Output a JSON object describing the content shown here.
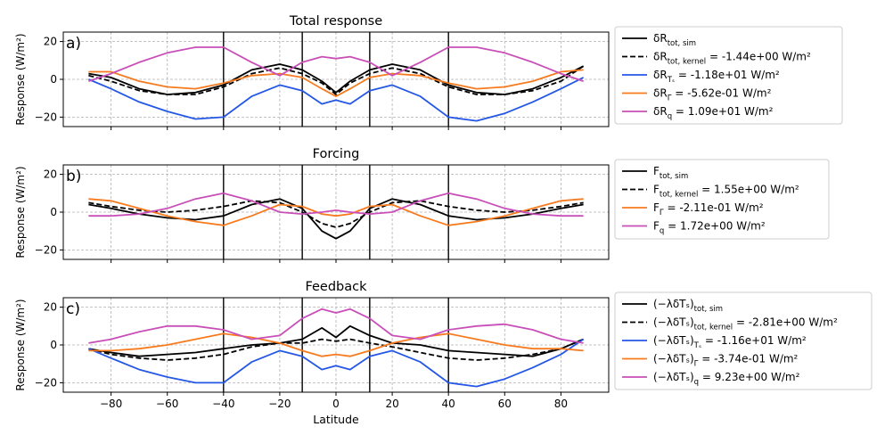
{
  "figure": {
    "ylabel": "Response (W/m²)",
    "xlabel": "Latitude",
    "x_ticks": [
      "−80",
      "−60",
      "−40",
      "−20",
      "0",
      "20",
      "40",
      "60",
      "80"
    ],
    "y_ticks": [
      "−20",
      "0",
      "20"
    ]
  },
  "chart_data": [
    {
      "type": "line",
      "panel_label": "a)",
      "title": "Total response",
      "xlabel": "",
      "ylabel": "Response (W/m²)",
      "xlim": [
        -97,
        97
      ],
      "ylim": [
        -25,
        25
      ],
      "vlines": [
        -40,
        -12,
        12,
        40
      ],
      "x": [
        -88,
        -80,
        -70,
        -60,
        -50,
        -40,
        -30,
        -20,
        -12,
        -5,
        0,
        5,
        12,
        20,
        30,
        40,
        50,
        60,
        70,
        80,
        88
      ],
      "series": [
        {
          "name": "δR_tot,sim",
          "legend_main": "δR",
          "legend_sub": "tot, sim",
          "legend_value": "",
          "color": "#000000",
          "dash": "solid",
          "values": [
            3,
            1,
            -5,
            -8,
            -7,
            -3,
            5,
            8,
            5,
            -1,
            -7,
            -1,
            5,
            8,
            5,
            -3,
            -7,
            -8,
            -5,
            1,
            7
          ]
        },
        {
          "name": "δR_tot,kernel",
          "legend_main": "δR",
          "legend_sub": "tot, kernel",
          "legend_value": " = -1.44e+00 W/m²",
          "color": "#000000",
          "dash": "dashed",
          "values": [
            2,
            -1,
            -6,
            -8,
            -8,
            -4,
            3,
            6,
            3,
            -2,
            -8,
            -2,
            3,
            6,
            3,
            -4,
            -8,
            -8,
            -6,
            -1,
            7
          ]
        },
        {
          "name": "δR_Ts",
          "legend_main": "δR",
          "legend_sub": "Tₛ",
          "legend_value": " = -1.18e+01 W/m²",
          "color": "#2457e6",
          "dash": "solid",
          "values": [
            0,
            -5,
            -12,
            -17,
            -21,
            -20,
            -9,
            -3,
            -6,
            -13,
            -11,
            -13,
            -6,
            -3,
            -9,
            -20,
            -22,
            -18,
            -12,
            -5,
            1
          ]
        },
        {
          "name": "δR_Γ",
          "legend_main": "δR",
          "legend_sub": "Γ",
          "legend_value": " = -5.62e-01 W/m²",
          "color": "#f77b1e",
          "dash": "solid",
          "values": [
            4,
            4,
            -1,
            -4,
            -5,
            -2,
            2,
            3,
            1,
            -5,
            -9,
            -5,
            1,
            3,
            2,
            -2,
            -5,
            -4,
            -1,
            4,
            5
          ]
        },
        {
          "name": "δR_q",
          "legend_main": "δR",
          "legend_sub": "q",
          "legend_value": " = 1.09e+01 W/m²",
          "color": "#c94fb8",
          "dash": "solid",
          "values": [
            -1,
            3,
            9,
            14,
            17,
            17,
            9,
            2,
            9,
            12,
            11,
            12,
            9,
            2,
            9,
            17,
            17,
            14,
            9,
            3,
            -1
          ]
        }
      ]
    },
    {
      "type": "line",
      "panel_label": "b)",
      "title": "Forcing",
      "xlabel": "",
      "ylabel": "Response (W/m²)",
      "xlim": [
        -97,
        97
      ],
      "ylim": [
        -25,
        25
      ],
      "vlines": [
        -40,
        -12,
        12,
        40
      ],
      "x": [
        -88,
        -80,
        -70,
        -60,
        -50,
        -40,
        -30,
        -20,
        -12,
        -5,
        0,
        5,
        12,
        20,
        30,
        40,
        50,
        60,
        70,
        80,
        88
      ],
      "series": [
        {
          "name": "F_tot,sim",
          "legend_main": "F",
          "legend_sub": "tot, sim",
          "legend_value": "",
          "color": "#000000",
          "dash": "solid",
          "values": [
            4,
            2,
            -1,
            -3,
            -4,
            -2,
            4,
            7,
            2,
            -10,
            -14,
            -10,
            2,
            7,
            4,
            -2,
            -4,
            -3,
            -1,
            2,
            4
          ]
        },
        {
          "name": "F_tot,kernel",
          "legend_main": "F",
          "legend_sub": "tot, kernel",
          "legend_value": " = 1.55e+00 W/m²",
          "color": "#000000",
          "dash": "dashed",
          "values": [
            5,
            3,
            1,
            0,
            1,
            3,
            6,
            5,
            0,
            -6,
            -8,
            -6,
            0,
            5,
            6,
            3,
            1,
            0,
            1,
            3,
            5
          ]
        },
        {
          "name": "F_Γ",
          "legend_main": "F",
          "legend_sub": "Γ",
          "legend_value": " = -2.11e-01 W/m²",
          "color": "#f77b1e",
          "dash": "solid",
          "values": [
            7,
            6,
            2,
            -2,
            -5,
            -7,
            -2,
            4,
            3,
            -1,
            -2,
            -1,
            3,
            4,
            -2,
            -7,
            -5,
            -2,
            2,
            6,
            7
          ]
        },
        {
          "name": "F_q",
          "legend_main": "F",
          "legend_sub": "q",
          "legend_value": " = 1.72e+00 W/m²",
          "color": "#c94fb8",
          "dash": "solid",
          "values": [
            -2,
            -2,
            -1,
            2,
            7,
            10,
            6,
            0,
            -1,
            0,
            1,
            0,
            -1,
            0,
            6,
            10,
            7,
            2,
            -1,
            -2,
            -2
          ]
        }
      ]
    },
    {
      "type": "line",
      "panel_label": "c)",
      "title": "Feedback",
      "xlabel": "Latitude",
      "ylabel": "Response (W/m²)",
      "xlim": [
        -97,
        97
      ],
      "ylim": [
        -25,
        25
      ],
      "vlines": [
        -40,
        -12,
        12,
        40
      ],
      "x": [
        -88,
        -80,
        -70,
        -60,
        -50,
        -40,
        -30,
        -20,
        -12,
        -5,
        0,
        5,
        12,
        20,
        30,
        40,
        50,
        60,
        70,
        80,
        88
      ],
      "series": [
        {
          "name": "(−λδTs)_tot,sim",
          "legend_main": "(−λδTₛ)",
          "legend_sub": "tot, sim",
          "legend_value": "",
          "color": "#000000",
          "dash": "solid",
          "values": [
            -2,
            -4,
            -6,
            -5,
            -4,
            -2,
            0,
            1,
            3,
            9,
            4,
            10,
            5,
            1,
            0,
            -3,
            -4,
            -5,
            -6,
            -2,
            3
          ]
        },
        {
          "name": "(−λδTs)_tot,kernel",
          "legend_main": "(−λδTₛ)",
          "legend_sub": "tot, kernel",
          "legend_value": " = -2.81e+00 W/m²",
          "color": "#000000",
          "dash": "dashed",
          "values": [
            -2,
            -5,
            -7,
            -8,
            -7,
            -5,
            -1,
            1,
            1,
            3,
            2,
            3,
            1,
            -1,
            -4,
            -7,
            -8,
            -7,
            -5,
            -2,
            3
          ]
        },
        {
          "name": "(−λδTs)_Ts",
          "legend_main": "(−λδTₛ)",
          "legend_sub": "Tₛ",
          "legend_value": " = -1.16e+01 W/m²",
          "color": "#2457e6",
          "dash": "solid",
          "values": [
            -2,
            -7,
            -13,
            -17,
            -20,
            -20,
            -9,
            -3,
            -6,
            -13,
            -11,
            -13,
            -6,
            -3,
            -9,
            -20,
            -22,
            -18,
            -12,
            -5,
            3
          ]
        },
        {
          "name": "(−λδTs)_Γ",
          "legend_main": "(−λδTₛ)",
          "legend_sub": "Γ",
          "legend_value": " = -3.74e-01 W/m²",
          "color": "#f77b1e",
          "dash": "solid",
          "values": [
            -3,
            -3,
            -2,
            0,
            3,
            6,
            4,
            1,
            -3,
            -6,
            -5,
            -6,
            -3,
            1,
            4,
            6,
            3,
            0,
            -2,
            -2,
            -3
          ]
        },
        {
          "name": "(−λδTs)_q",
          "legend_main": "(−λδTₛ)",
          "legend_sub": "q",
          "legend_value": " = 9.23e+00 W/m²",
          "color": "#c94fb8",
          "dash": "solid",
          "values": [
            1,
            3,
            7,
            10,
            10,
            8,
            3,
            5,
            14,
            19,
            17,
            19,
            14,
            5,
            3,
            8,
            10,
            11,
            8,
            3,
            1
          ]
        }
      ]
    }
  ]
}
